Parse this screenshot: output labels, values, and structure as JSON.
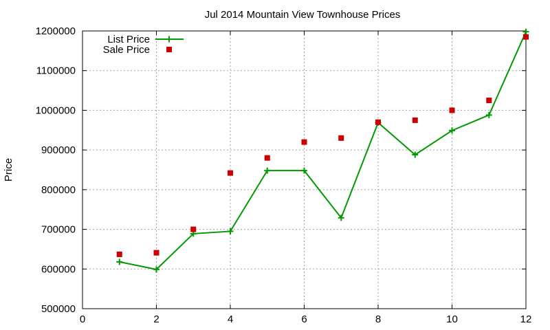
{
  "chart_data": {
    "type": "line",
    "title": "Jul 2014 Mountain View Townhouse Prices",
    "xlabel": "",
    "ylabel": "Price",
    "xlim": [
      0,
      12
    ],
    "ylim": [
      500000,
      1200000
    ],
    "xticks": [
      0,
      2,
      4,
      6,
      8,
      10,
      12
    ],
    "yticks": [
      500000,
      600000,
      700000,
      800000,
      900000,
      1000000,
      1100000,
      1200000
    ],
    "grid": true,
    "legend_position": "top-left",
    "series": [
      {
        "name": "List Price",
        "style": "line+cross",
        "color": "#009900",
        "x": [
          1,
          2,
          3,
          4,
          5,
          6,
          7,
          8,
          9,
          10,
          11,
          12
        ],
        "y": [
          618000,
          599000,
          689000,
          695000,
          848000,
          848000,
          729000,
          969000,
          888000,
          949000,
          988000,
          1198000
        ]
      },
      {
        "name": "Sale Price",
        "style": "square",
        "color": "#cc0000",
        "x": [
          1,
          2,
          3,
          4,
          5,
          6,
          7,
          8,
          9,
          10,
          11,
          12
        ],
        "y": [
          637000,
          641000,
          700000,
          842000,
          880000,
          920000,
          930000,
          970000,
          975000,
          1000000,
          1025000,
          1185000
        ]
      }
    ]
  }
}
